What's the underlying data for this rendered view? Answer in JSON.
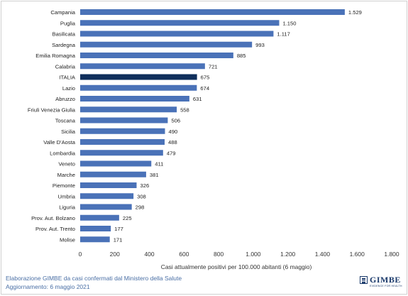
{
  "chart_data": {
    "type": "bar",
    "orientation": "horizontal",
    "categories": [
      "Campania",
      "Puglia",
      "Basilicata",
      "Sardegna",
      "Emilia Romagna",
      "Calabria",
      "ITALIA",
      "Lazio",
      "Abruzzo",
      "Friuli Venezia Giulia",
      "Toscana",
      "Sicilia",
      "Valle D'Aosta",
      "Lombardia",
      "Veneto",
      "Marche",
      "Piemonte",
      "Umbria",
      "Liguria",
      "Prov. Aut. Bolzano",
      "Prov. Aut. Trento",
      "Molise"
    ],
    "values": [
      1529,
      1150,
      1117,
      993,
      885,
      721,
      675,
      674,
      631,
      558,
      506,
      490,
      488,
      479,
      411,
      381,
      326,
      308,
      298,
      225,
      177,
      171
    ],
    "value_labels": [
      "1.529",
      "1.150",
      "1.117",
      "993",
      "885",
      "721",
      "675",
      "674",
      "631",
      "558",
      "506",
      "490",
      "488",
      "479",
      "411",
      "381",
      "326",
      "308",
      "298",
      "225",
      "177",
      "171"
    ],
    "highlight_category": "ITALIA",
    "xlabel": "Casi attualmente positivi per 100.000 abitanti (6 maggio)",
    "xlim": [
      0,
      1800
    ],
    "x_ticks": [
      0,
      200,
      400,
      600,
      800,
      1000,
      1200,
      1400,
      1600,
      1800
    ],
    "x_tick_labels": [
      "0",
      "200",
      "400",
      "600",
      "800",
      "1.000",
      "1.200",
      "1.400",
      "1.600",
      "1.800"
    ],
    "grid": false,
    "colors": {
      "bar": "#4a72b8",
      "highlight": "#0f2f5c"
    }
  },
  "footer": {
    "source": "Elaborazione GIMBE da casi confermati dal Ministero della Salute",
    "update": "Aggiornamento: 6 maggio 2021"
  },
  "logo": {
    "name": "GIMBE",
    "tagline": "EVIDENCE FOR HEALTH"
  }
}
